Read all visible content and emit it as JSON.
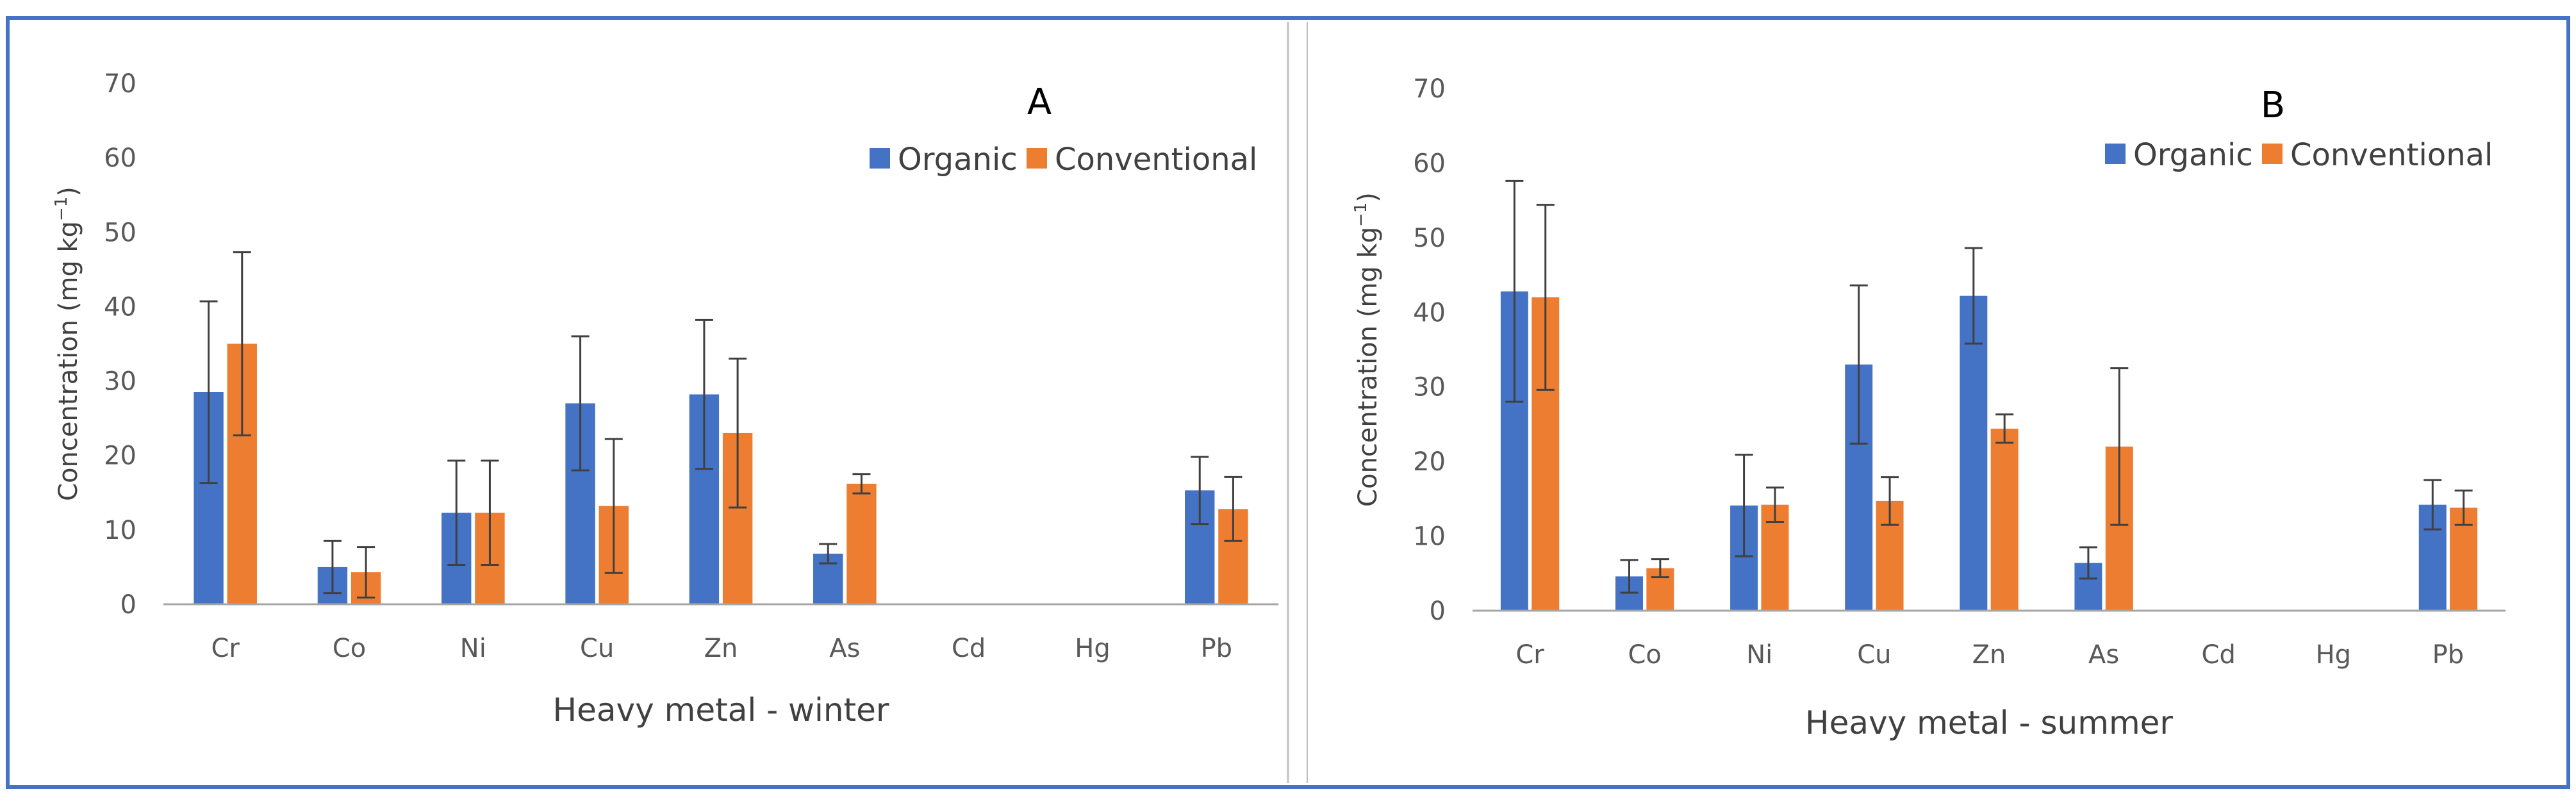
{
  "chart_data": [
    {
      "type": "bar",
      "panel_label": "A",
      "title": "",
      "xlabel": "Heavy metal - winter",
      "ylabel": "Concentration (mg kg",
      "ylabel_sup": "−1",
      "ylabel_close": ")",
      "ylim": [
        0,
        70
      ],
      "yticks": [
        "0",
        "10",
        "20",
        "30",
        "40",
        "50",
        "60",
        "70"
      ],
      "grid": false,
      "legend_position": "top-right",
      "categories": [
        "Cr",
        "Co",
        "Ni",
        "Cu",
        "Zn",
        "As",
        "Cd",
        "Hg",
        "Pb"
      ],
      "series": [
        {
          "name": "Organic",
          "color": "#4472C4",
          "values": [
            28.5,
            5.0,
            12.3,
            27.0,
            28.2,
            6.8,
            0,
            0,
            15.3
          ],
          "errors": [
            12.2,
            3.5,
            7.0,
            9.0,
            10.0,
            1.3,
            0,
            0,
            4.5
          ]
        },
        {
          "name": "Conventional",
          "color": "#ED7D31",
          "values": [
            35.0,
            4.3,
            12.3,
            13.2,
            23.0,
            16.2,
            0,
            0,
            12.8
          ],
          "errors": [
            12.3,
            3.4,
            7.0,
            9.0,
            10.0,
            1.3,
            0,
            0,
            4.3
          ]
        }
      ]
    },
    {
      "type": "bar",
      "panel_label": "B",
      "title": "",
      "xlabel": "Heavy metal - summer",
      "ylabel": "Concentration (mg kg",
      "ylabel_sup": "−1",
      "ylabel_close": ")",
      "ylim": [
        0,
        70
      ],
      "yticks": [
        "0",
        "10",
        "20",
        "30",
        "40",
        "50",
        "60",
        "70"
      ],
      "grid": false,
      "legend_position": "top-right",
      "categories": [
        "Cr",
        "Co",
        "Ni",
        "Cu",
        "Zn",
        "As",
        "Cd",
        "Hg",
        "Pb"
      ],
      "series": [
        {
          "name": "Organic",
          "color": "#4472C4",
          "values": [
            42.8,
            4.6,
            14.1,
            33.0,
            42.2,
            6.4,
            0,
            0,
            14.2
          ],
          "errors": [
            14.8,
            2.2,
            6.8,
            10.6,
            6.4,
            2.1,
            0,
            0,
            3.3
          ]
        },
        {
          "name": "Conventional",
          "color": "#ED7D31",
          "values": [
            42.0,
            5.7,
            14.2,
            14.7,
            24.4,
            22.0,
            0,
            0,
            13.8
          ],
          "errors": [
            12.4,
            1.2,
            2.3,
            3.2,
            1.9,
            10.5,
            0,
            0,
            2.3
          ]
        }
      ]
    }
  ],
  "colors": {
    "frame": "#4472C4",
    "divider": "#BFBFBF",
    "axis": "#A6A6A6",
    "error_bar": "#404040"
  }
}
